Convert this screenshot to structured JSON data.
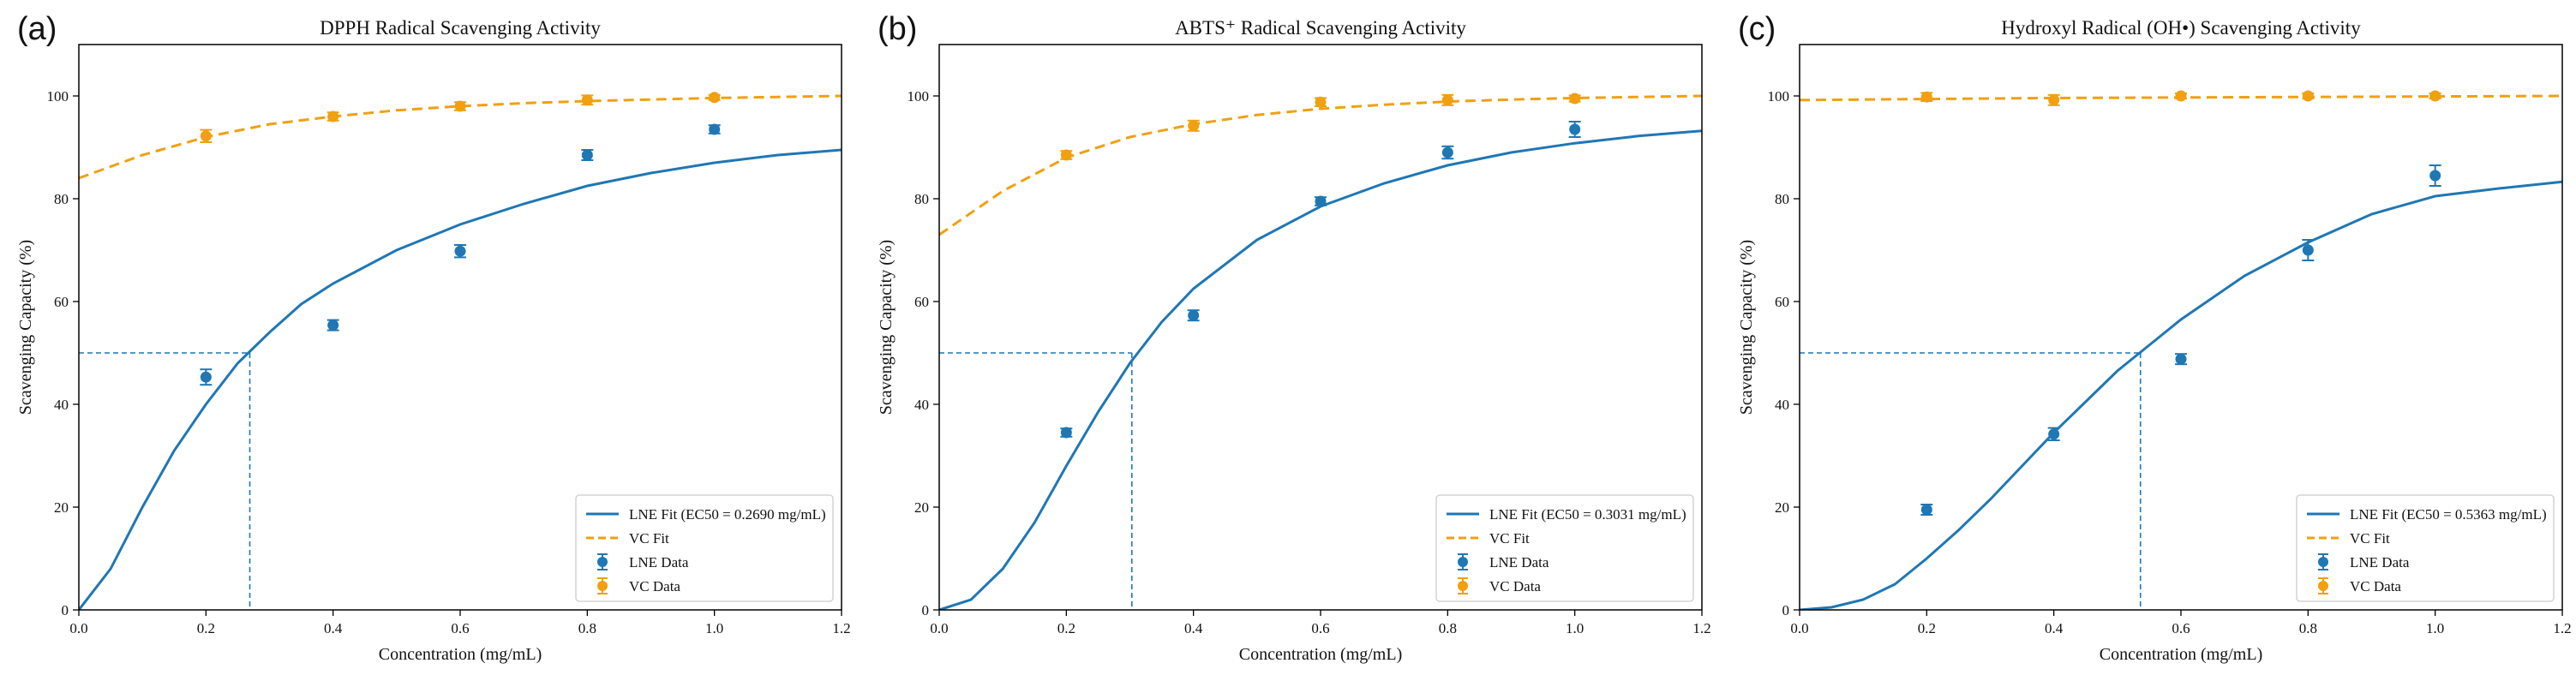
{
  "colors": {
    "lne": "#1f77b4",
    "vc": "#f0a010",
    "axis": "#000000",
    "legend_border": "#cccccc"
  },
  "chart_data": [
    {
      "type": "scatter",
      "panel_label": "(a)",
      "title": "DPPH Radical Scavenging Activity",
      "xlabel": "Concentration (mg/mL)",
      "ylabel": "Scavenging Capacity (%)",
      "xlim": [
        0,
        1.2
      ],
      "ylim": [
        0,
        110
      ],
      "xticks": [
        0.0,
        0.2,
        0.4,
        0.6,
        0.8,
        1.0,
        1.2
      ],
      "xtick_labels": [
        "0.0",
        "0.2",
        "0.4",
        "0.6",
        "0.8",
        "1.0",
        "1.2"
      ],
      "yticks": [
        0,
        20,
        40,
        60,
        80,
        100
      ],
      "ytick_labels": [
        "0",
        "20",
        "40",
        "60",
        "80",
        "100"
      ],
      "legend_position": "bottom-right",
      "ec50": 0.269,
      "series": [
        {
          "name": "LNE Fit (EC50 = 0.2690 mg/mL)",
          "kind": "fit",
          "style": "solid",
          "color_key": "lne",
          "x": [
            0,
            0.05,
            0.1,
            0.15,
            0.2,
            0.25,
            0.3,
            0.35,
            0.4,
            0.5,
            0.6,
            0.7,
            0.8,
            0.9,
            1.0,
            1.1,
            1.2
          ],
          "y": [
            0,
            8,
            20,
            31,
            40,
            48,
            54,
            59.5,
            63.5,
            70,
            75,
            79,
            82.5,
            85,
            87,
            88.5,
            89.5
          ]
        },
        {
          "name": "VC Fit",
          "kind": "fit",
          "style": "dashed",
          "color_key": "vc",
          "x": [
            0,
            0.1,
            0.2,
            0.3,
            0.4,
            0.5,
            0.6,
            0.7,
            0.8,
            0.9,
            1.0,
            1.1,
            1.2
          ],
          "y": [
            84,
            88.5,
            92,
            94.5,
            96,
            97.2,
            98,
            98.6,
            99,
            99.3,
            99.6,
            99.8,
            100
          ]
        },
        {
          "name": "LNE Data",
          "kind": "points",
          "color_key": "lne",
          "x": [
            0.2,
            0.4,
            0.6,
            0.8,
            1.0
          ],
          "y": [
            45.3,
            55.4,
            69.8,
            88.5,
            93.5
          ],
          "err": [
            1.5,
            1.0,
            1.2,
            1.0,
            0.8
          ]
        },
        {
          "name": "VC Data",
          "kind": "points",
          "color_key": "vc",
          "x": [
            0.2,
            0.4,
            0.6,
            0.8,
            1.0
          ],
          "y": [
            92.2,
            96,
            98,
            99.2,
            99.7
          ],
          "err": [
            1.2,
            0.8,
            0.8,
            0.9,
            0.5
          ]
        }
      ]
    },
    {
      "type": "scatter",
      "panel_label": "(b)",
      "title": "ABTS⁺ Radical Scavenging Activity",
      "xlabel": "Concentration (mg/mL)",
      "ylabel": "Scavenging Capacity (%)",
      "xlim": [
        0,
        1.2
      ],
      "ylim": [
        0,
        110
      ],
      "xticks": [
        0.0,
        0.2,
        0.4,
        0.6,
        0.8,
        1.0,
        1.2
      ],
      "xtick_labels": [
        "0.0",
        "0.2",
        "0.4",
        "0.6",
        "0.8",
        "1.0",
        "1.2"
      ],
      "yticks": [
        0,
        20,
        40,
        60,
        80,
        100
      ],
      "ytick_labels": [
        "0",
        "20",
        "40",
        "60",
        "80",
        "100"
      ],
      "legend_position": "bottom-right",
      "ec50": 0.3031,
      "series": [
        {
          "name": "LNE Fit (EC50 = 0.3031 mg/mL)",
          "kind": "fit",
          "style": "solid",
          "color_key": "lne",
          "x": [
            0,
            0.05,
            0.1,
            0.15,
            0.2,
            0.25,
            0.3,
            0.35,
            0.4,
            0.5,
            0.6,
            0.7,
            0.8,
            0.9,
            1.0,
            1.1,
            1.2
          ],
          "y": [
            0,
            2,
            8,
            17,
            28,
            38.5,
            48,
            56,
            62.5,
            72,
            78.5,
            83,
            86.5,
            89,
            90.8,
            92.2,
            93.2
          ]
        },
        {
          "name": "VC Fit",
          "kind": "fit",
          "style": "dashed",
          "color_key": "vc",
          "x": [
            0,
            0.1,
            0.2,
            0.3,
            0.4,
            0.5,
            0.6,
            0.7,
            0.8,
            0.9,
            1.0,
            1.1,
            1.2
          ],
          "y": [
            73,
            81.5,
            88,
            92,
            94.5,
            96.3,
            97.5,
            98.3,
            98.9,
            99.3,
            99.6,
            99.8,
            100
          ]
        },
        {
          "name": "LNE Data",
          "kind": "points",
          "color_key": "lne",
          "x": [
            0.2,
            0.4,
            0.6,
            0.8,
            1.0
          ],
          "y": [
            34.5,
            57.3,
            79.5,
            89,
            93.5
          ],
          "err": [
            0.8,
            1.0,
            0.8,
            1.2,
            1.5
          ]
        },
        {
          "name": "VC Data",
          "kind": "points",
          "color_key": "vc",
          "x": [
            0.2,
            0.4,
            0.6,
            0.8,
            1.0
          ],
          "y": [
            88.5,
            94.2,
            98.8,
            99.2,
            99.5
          ],
          "err": [
            0.8,
            1.0,
            0.8,
            1.0,
            0.6
          ]
        }
      ]
    },
    {
      "type": "scatter",
      "panel_label": "(c)",
      "title": "Hydroxyl Radical (OH•) Scavenging Activity",
      "xlabel": "Concentration (mg/mL)",
      "ylabel": "Scavenging Capacity (%)",
      "xlim": [
        0,
        1.2
      ],
      "ylim": [
        0,
        110
      ],
      "xticks": [
        0.0,
        0.2,
        0.4,
        0.6,
        0.8,
        1.0,
        1.2
      ],
      "xtick_labels": [
        "0.0",
        "0.2",
        "0.4",
        "0.6",
        "0.8",
        "1.0",
        "1.2"
      ],
      "yticks": [
        0,
        20,
        40,
        60,
        80,
        100
      ],
      "ytick_labels": [
        "0",
        "20",
        "40",
        "60",
        "80",
        "100"
      ],
      "legend_position": "bottom-right",
      "ec50": 0.5363,
      "series": [
        {
          "name": "LNE Fit (EC50 = 0.5363 mg/mL)",
          "kind": "fit",
          "style": "solid",
          "color_key": "lne",
          "x": [
            0,
            0.05,
            0.1,
            0.15,
            0.2,
            0.25,
            0.3,
            0.35,
            0.4,
            0.45,
            0.5,
            0.55,
            0.6,
            0.7,
            0.8,
            0.9,
            1.0,
            1.1,
            1.2
          ],
          "y": [
            0,
            0.5,
            2,
            5,
            10,
            15.5,
            21.5,
            28,
            34.5,
            40.5,
            46.5,
            51.5,
            56.5,
            65,
            71.5,
            77,
            80.5,
            82,
            83.3
          ]
        },
        {
          "name": "VC Fit",
          "kind": "fit",
          "style": "dashed",
          "color_key": "vc",
          "x": [
            0,
            0.2,
            0.4,
            0.6,
            0.8,
            1.0,
            1.2
          ],
          "y": [
            99.2,
            99.4,
            99.6,
            99.7,
            99.8,
            99.9,
            100
          ]
        },
        {
          "name": "LNE Data",
          "kind": "points",
          "color_key": "lne",
          "x": [
            0.2,
            0.4,
            0.6,
            0.8,
            1.0
          ],
          "y": [
            19.5,
            34.2,
            48.8,
            70,
            84.5
          ],
          "err": [
            1.0,
            1.2,
            1.0,
            2.0,
            2.0
          ]
        },
        {
          "name": "VC Data",
          "kind": "points",
          "color_key": "vc",
          "x": [
            0.2,
            0.4,
            0.6,
            0.8,
            1.0
          ],
          "y": [
            99.8,
            99.2,
            100,
            100,
            100
          ],
          "err": [
            0.8,
            1.0,
            0.5,
            0.5,
            0.5
          ]
        }
      ]
    }
  ]
}
